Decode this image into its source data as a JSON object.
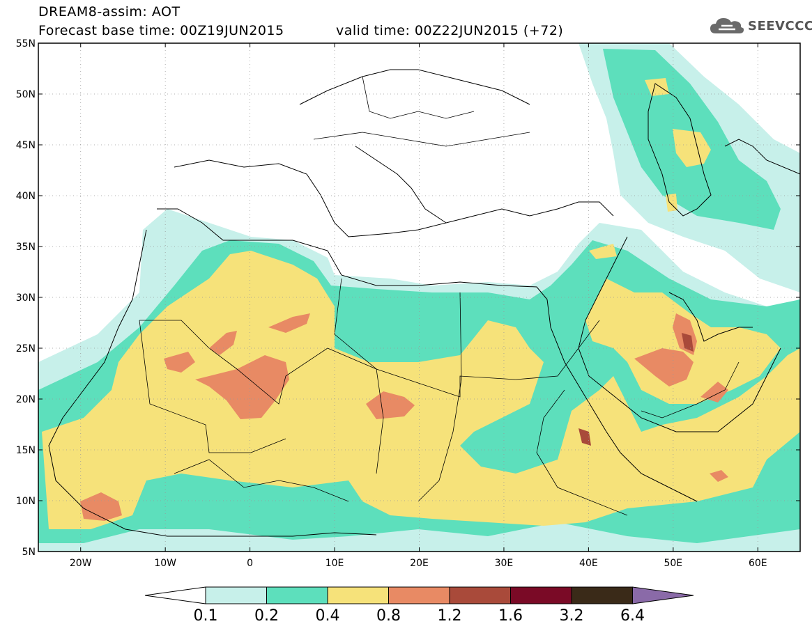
{
  "header": {
    "line1": "DREAM8-assim: AOT",
    "line2": "Forecast base time: 00Z19JUN2015",
    "valid": "valid time: 00Z22JUN2015 (+72)"
  },
  "logo": {
    "text": "SEEVCCC",
    "icon": "cloud-icon"
  },
  "map": {
    "lon_labels": [
      "20W",
      "10W",
      "0",
      "10E",
      "20E",
      "30E",
      "40E",
      "50E",
      "60E"
    ],
    "lat_labels": [
      "55N",
      "50N",
      "45N",
      "40N",
      "35N",
      "30N",
      "25N",
      "20N",
      "15N",
      "10N",
      "5N"
    ],
    "grid": "dotted",
    "lon_range": [
      -25,
      65
    ],
    "lat_range": [
      5,
      55
    ]
  },
  "colorbar": {
    "labels": [
      "0.1",
      "0.2",
      "0.4",
      "0.8",
      "1.2",
      "1.6",
      "3.2",
      "6.4"
    ],
    "colors": [
      "#ffffff",
      "#c7f0ea",
      "#5ddfbc",
      "#f6e27a",
      "#e88a64",
      "#a94a3a",
      "#7a0a26",
      "#3a2a18",
      "#8a6aa8"
    ]
  }
}
